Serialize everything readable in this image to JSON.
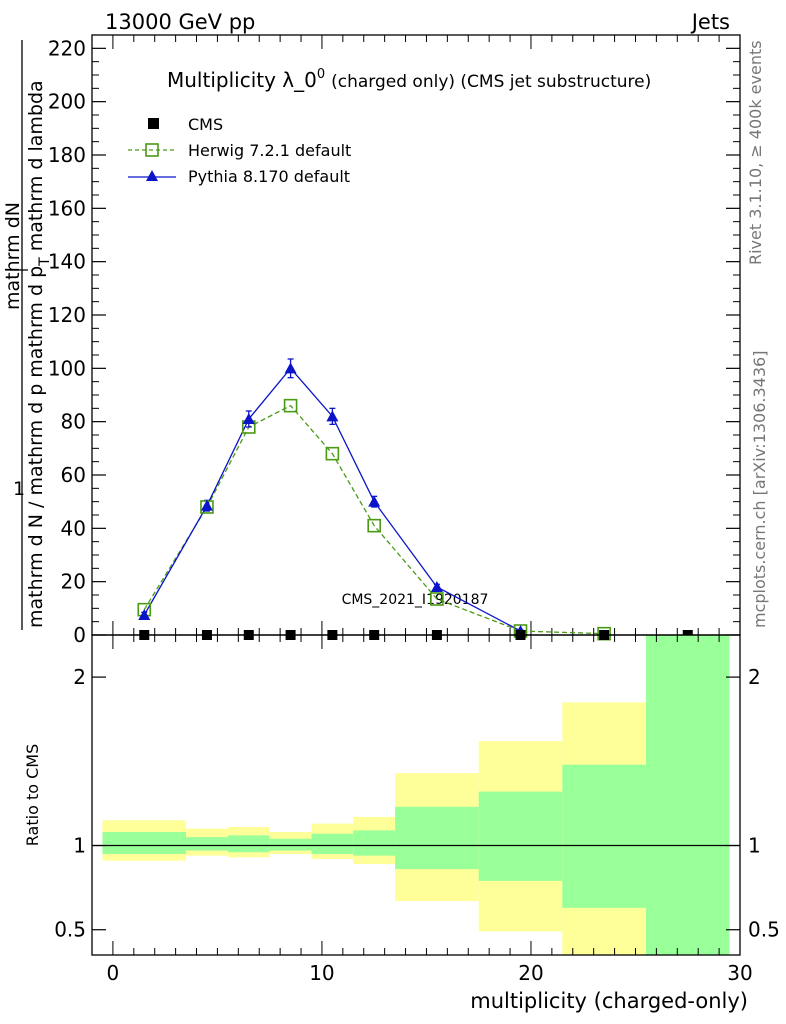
{
  "header": {
    "energy_label": "13000 GeV pp",
    "category_label": "Jets"
  },
  "side_labels": {
    "rivet": "Rivet 3.1.10, ≥ 400k events",
    "mcplots": "mcplots.cern.ch [arXiv:1306.3436]"
  },
  "colors": {
    "herwig": "#4a9a16",
    "pythia": "#0b14c8",
    "band_outer": "#ffff99",
    "band_inner": "#99ff99",
    "watermark": "#888888"
  },
  "chart_data": [
    {
      "type": "line",
      "title_main": "Multiplicity λ_0",
      "title_sup": "0",
      "title_suffix": "(charged only) (CMS jet substructure)",
      "ylabel_numerator": "1",
      "ylabel_top": "mathrm dN",
      "ylabel_bottom": "mathrm d N / mathrm d p",
      "ylabel_rest": "mathrm d p",
      "ylabel_full_line1": "mathrm d N / mathrm d p",
      "ylabel_full_line2": "mathrm d p",
      "ylabel_sub": "T",
      "ylabel_tail": "mathrm d lambda",
      "ylim": [
        0,
        225
      ],
      "yticks": [
        "0",
        "20",
        "40",
        "60",
        "80",
        "100",
        "120",
        "140",
        "160",
        "180",
        "200",
        "220"
      ],
      "watermark": "CMS_2021_I1920187",
      "legend": [
        "CMS",
        "Herwig 7.2.1 default",
        "Pythia 8.170 default"
      ],
      "series": [
        {
          "name": "CMS",
          "x": [
            1.5,
            4.5,
            6.5,
            8.5,
            10.5,
            12.5,
            15.5,
            19.5,
            23.5,
            27.5
          ],
          "values": [
            0,
            0,
            0,
            0,
            0,
            0,
            0,
            0,
            0,
            0
          ]
        },
        {
          "name": "Herwig 7.2.1 default",
          "x": [
            1.5,
            4.5,
            6.5,
            8.5,
            10.5,
            12.5,
            15.5,
            19.5,
            23.5
          ],
          "values": [
            9.5,
            48,
            78,
            86,
            68,
            41,
            13.5,
            1.5,
            0.5
          ]
        },
        {
          "name": "Pythia 8.170 default",
          "x": [
            1.5,
            4.5,
            6.5,
            8.5,
            10.5,
            12.5,
            15.5,
            19.5
          ],
          "values": [
            7.5,
            48.5,
            81,
            100,
            82,
            50,
            18,
            1.5
          ],
          "errors": [
            1,
            2,
            3,
            3.5,
            3,
            2,
            1,
            0.3
          ]
        }
      ]
    },
    {
      "type": "area",
      "ylabel": "Ratio to CMS",
      "xlabel": "multiplicity (charged-only)",
      "xlim": [
        -1,
        30
      ],
      "ylim": [
        0.35,
        2.25
      ],
      "xticks": [
        "0",
        "10",
        "20",
        "30"
      ],
      "yticks": [
        "0.5",
        "1",
        "2"
      ],
      "bins": [
        {
          "lo": -0.5,
          "hi": 3.5,
          "outer": [
            0.91,
            1.15
          ],
          "inner": [
            0.95,
            1.08
          ]
        },
        {
          "lo": 3.5,
          "hi": 5.5,
          "outer": [
            0.94,
            1.1
          ],
          "inner": [
            0.97,
            1.05
          ]
        },
        {
          "lo": 5.5,
          "hi": 7.5,
          "outer": [
            0.93,
            1.11
          ],
          "inner": [
            0.96,
            1.06
          ]
        },
        {
          "lo": 7.5,
          "hi": 9.5,
          "outer": [
            0.95,
            1.08
          ],
          "inner": [
            0.97,
            1.04
          ]
        },
        {
          "lo": 9.5,
          "hi": 11.5,
          "outer": [
            0.92,
            1.13
          ],
          "inner": [
            0.95,
            1.07
          ]
        },
        {
          "lo": 11.5,
          "hi": 13.5,
          "outer": [
            0.89,
            1.17
          ],
          "inner": [
            0.94,
            1.09
          ]
        },
        {
          "lo": 13.5,
          "hi": 17.5,
          "outer": [
            0.67,
            1.43
          ],
          "inner": [
            0.86,
            1.23
          ]
        },
        {
          "lo": 17.5,
          "hi": 21.5,
          "outer": [
            0.49,
            1.62
          ],
          "inner": [
            0.79,
            1.32
          ]
        },
        {
          "lo": 21.5,
          "hi": 25.5,
          "outer": [
            0.35,
            1.85
          ],
          "inner": [
            0.63,
            1.48
          ]
        },
        {
          "lo": 25.5,
          "hi": 29.5,
          "outer": [
            0.35,
            2.25
          ],
          "inner": [
            0.35,
            2.25
          ]
        }
      ]
    }
  ]
}
